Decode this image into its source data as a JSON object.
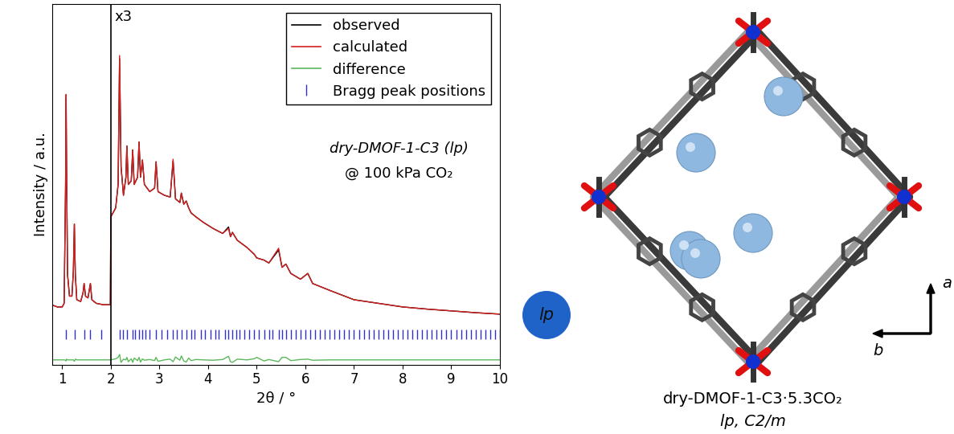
{
  "chart_data": {
    "type": "line",
    "x_label": "2θ / °",
    "y_label": "Intensity / a.u.",
    "xlim": [
      0.8,
      10
    ],
    "xticks": [
      1,
      2,
      3,
      4,
      5,
      6,
      7,
      8,
      9,
      10
    ],
    "ylim": [
      0,
      100
    ],
    "tick_labels": "x",
    "legend": "upper right",
    "annotations": [
      {
        "text": "x3",
        "x": 2
      },
      {
        "text": "dry-DMOF-1-C3 (lp)"
      },
      {
        "text": "@ 100 kPa CO₂"
      }
    ],
    "x": [
      0.8,
      0.9,
      1.0,
      1.04,
      1.07,
      1.08,
      1.09,
      1.11,
      1.15,
      1.2,
      1.23,
      1.25,
      1.27,
      1.3,
      1.38,
      1.43,
      1.45,
      1.48,
      1.53,
      1.58,
      1.61,
      1.7,
      1.85,
      1.99,
      2.0,
      2.1,
      2.15,
      2.18,
      2.21,
      2.26,
      2.31,
      2.33,
      2.36,
      2.42,
      2.45,
      2.48,
      2.55,
      2.58,
      2.61,
      2.65,
      2.69,
      2.8,
      2.9,
      2.93,
      2.97,
      3.1,
      3.22,
      3.28,
      3.33,
      3.42,
      3.45,
      3.5,
      3.55,
      3.6,
      3.65,
      3.75,
      3.9,
      4.1,
      4.3,
      4.42,
      4.46,
      4.5,
      4.6,
      4.8,
      4.95,
      5.0,
      5.15,
      5.25,
      5.45,
      5.52,
      5.6,
      5.7,
      5.9,
      6.05,
      6.15,
      6.5,
      7.0,
      7.5,
      8.0,
      8.5,
      9.0,
      9.5,
      10.0
    ],
    "series": [
      {
        "name": "observed",
        "color": "#000000",
        "type": "line",
        "values": [
          16.5,
          16.0,
          16.0,
          17.0,
          50.0,
          74.0,
          55.0,
          25.0,
          19.0,
          19.0,
          26.0,
          39.0,
          25.0,
          18.0,
          17.5,
          20.0,
          22.5,
          19.0,
          18.5,
          22.5,
          18.0,
          17.0,
          16.6,
          16.6,
          41.0,
          43.5,
          50.0,
          84.9,
          55.0,
          47.0,
          52.0,
          60.7,
          50.0,
          51.0,
          59.6,
          50.0,
          52.0,
          61.8,
          52.0,
          56.8,
          50.0,
          48.0,
          49.0,
          56.3,
          48.0,
          47.0,
          46.5,
          56.5,
          46.0,
          45.0,
          47.6,
          44.5,
          45.4,
          43.5,
          42.1,
          41.0,
          39.5,
          37.8,
          36.4,
          38.2,
          35.5,
          36.7,
          34.5,
          32.5,
          30.6,
          29.6,
          29.0,
          28.2,
          31.8,
          27.0,
          27.9,
          25.3,
          23.7,
          25.3,
          22.5,
          20.6,
          18.0,
          17.0,
          16.0,
          15.4,
          14.9,
          14.4,
          14.0
        ]
      },
      {
        "name": "calculated",
        "color": "#d62020",
        "type": "line",
        "values": [
          16.5,
          16.0,
          16.0,
          17.0,
          50.0,
          75.0,
          55.0,
          25.0,
          19.0,
          19.0,
          26.0,
          39.0,
          25.0,
          18.0,
          17.5,
          20.0,
          22.5,
          19.0,
          18.5,
          22.5,
          18.0,
          17.0,
          16.6,
          16.6,
          41.0,
          43.5,
          50.0,
          85.8,
          55.0,
          47.0,
          52.0,
          60.7,
          50.0,
          51.0,
          59.6,
          50.0,
          52.0,
          61.8,
          52.0,
          56.8,
          50.0,
          48.0,
          49.0,
          56.3,
          48.0,
          47.0,
          46.5,
          57.0,
          46.0,
          45.0,
          47.6,
          44.5,
          45.4,
          43.5,
          42.1,
          41.0,
          39.5,
          37.8,
          36.4,
          37.8,
          35.5,
          36.7,
          34.5,
          32.5,
          30.6,
          29.6,
          29.0,
          28.2,
          32.3,
          27.0,
          27.9,
          25.3,
          23.7,
          25.3,
          22.5,
          20.6,
          18.0,
          17.0,
          16.0,
          15.4,
          14.9,
          14.4,
          14.0
        ]
      },
      {
        "name": "difference",
        "color": "#5cb85c",
        "type": "line",
        "values": [
          1.3,
          1.3,
          1.3,
          1.3,
          1.2,
          1.0,
          1.5,
          1.3,
          1.3,
          1.3,
          1.3,
          0.9,
          1.5,
          1.3,
          1.3,
          1.3,
          1.3,
          1.3,
          1.3,
          1.3,
          1.3,
          1.3,
          1.3,
          1.3,
          1.3,
          1.6,
          2.0,
          2.8,
          0.6,
          1.5,
          1.3,
          2.0,
          0.8,
          1.6,
          0.6,
          1.8,
          1.1,
          2.0,
          0.7,
          1.6,
          1.2,
          1.4,
          1.1,
          2.0,
          0.9,
          1.3,
          1.5,
          0.8,
          2.1,
          1.2,
          2.4,
          1.0,
          0.7,
          1.8,
          1.1,
          1.4,
          1.3,
          1.2,
          1.4,
          2.3,
          0.8,
          0.6,
          1.5,
          1.3,
          1.6,
          2.0,
          1.0,
          1.4,
          0.8,
          2.0,
          2.0,
          1.1,
          1.4,
          1.5,
          1.2,
          1.3,
          1.3,
          1.3,
          1.3,
          1.3,
          1.3,
          1.3,
          1.3
        ]
      }
    ],
    "bragg_peaks": {
      "name": "Bragg peak positions",
      "color": "#3030d0",
      "positions": [
        1.08,
        1.25,
        1.45,
        1.58,
        1.8,
        2.18,
        2.25,
        2.33,
        2.45,
        2.5,
        2.58,
        2.65,
        2.72,
        2.8,
        2.93,
        3.05,
        3.16,
        3.28,
        3.35,
        3.45,
        3.55,
        3.65,
        3.72,
        3.85,
        3.93,
        4.05,
        4.15,
        4.22,
        4.35,
        4.42,
        4.5,
        4.58,
        4.65,
        4.75,
        4.85,
        4.95,
        5.05,
        5.15,
        5.25,
        5.32,
        5.45,
        5.52,
        5.6,
        5.7,
        5.8,
        5.9,
        6.0,
        6.1,
        6.2,
        6.3,
        6.4,
        6.5,
        6.6,
        6.7,
        6.8,
        6.9,
        7.0,
        7.1,
        7.2,
        7.3,
        7.4,
        7.5,
        7.6,
        7.7,
        7.8,
        7.9,
        8.0,
        8.1,
        8.2,
        8.3,
        8.4,
        8.5,
        8.6,
        8.7,
        8.8,
        8.9,
        9.0,
        9.1,
        9.2,
        9.3,
        9.4,
        9.5,
        9.6,
        9.7,
        9.8,
        9.9,
        10.0
      ]
    }
  },
  "structure_panel": {
    "badge": "lp",
    "axes_labels": [
      "a",
      "b"
    ],
    "caption": [
      "dry-DMOF-1-C3·5.3CO₂",
      "lp, C2/m"
    ]
  }
}
